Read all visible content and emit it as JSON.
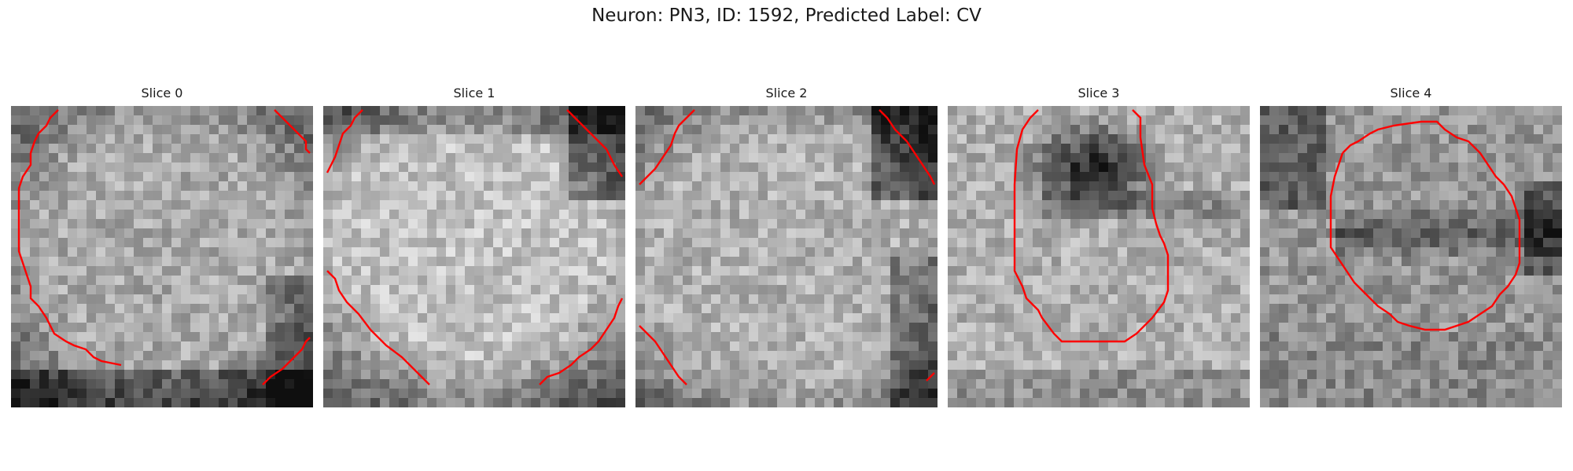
{
  "figure": {
    "title": "Neuron: PN3, ID: 1592, Predicted Label: CV"
  },
  "colors": {
    "background": "#ffffff",
    "text": "#1a1a1a",
    "contour": "#ff0000",
    "image_colormap": "grayscale"
  },
  "panels": [
    {
      "title": "Slice 0",
      "image": "grayscale-em-crop",
      "content": "bright rounded cell body filling frame with dark membrane edges",
      "contour_color": "#ff0000"
    },
    {
      "title": "Slice 1",
      "image": "grayscale-em-crop",
      "content": "bright oval cell body with dark surrounding membrane",
      "contour_color": "#ff0000"
    },
    {
      "title": "Slice 2",
      "image": "grayscale-em-crop",
      "content": "bright cell body with textured interior and dark border",
      "contour_color": "#ff0000"
    },
    {
      "title": "Slice 3",
      "image": "grayscale-em-crop",
      "content": "cell body with dark region in upper portion",
      "contour_color": "#ff0000"
    },
    {
      "title": "Slice 4",
      "image": "grayscale-em-crop",
      "content": "mixed textured region with dark horizontal band",
      "contour_color": "#ff0000"
    }
  ]
}
